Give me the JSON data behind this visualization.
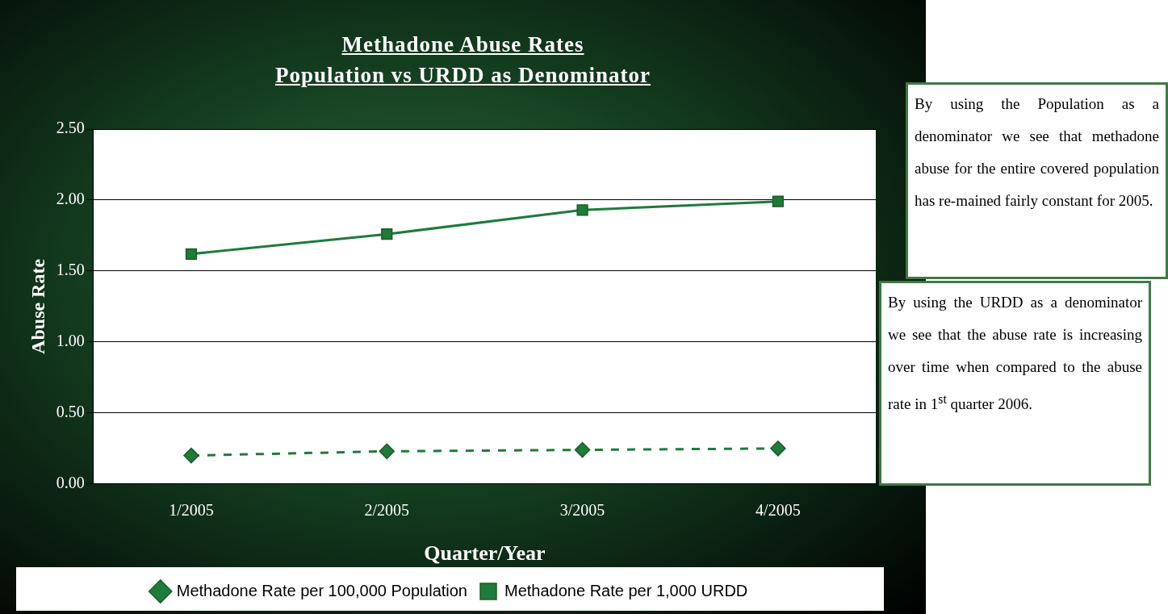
{
  "chart_data": {
    "type": "line",
    "title": "Methadone Abuse Rates ",
    "subtitle": "Population vs URDD as Denominator",
    "xlabel": "Quarter/Year",
    "ylabel": "Abuse Rate",
    "categories": [
      "1/2005",
      "2/2005",
      "3/2005",
      "4/2005"
    ],
    "series": [
      {
        "name": "Methadone Rate per 100,000 Population",
        "color": "#1e7b3a",
        "values": [
          0.2,
          0.23,
          0.24,
          0.25
        ],
        "marker": "diamond",
        "line_style": "dashed"
      },
      {
        "name": "Methadone Rate per 1,000 URDD",
        "color": "#1e7b3a",
        "values": [
          1.62,
          1.76,
          1.93,
          1.99
        ],
        "marker": "square",
        "line_style": "solid"
      }
    ],
    "ylim": [
      0,
      2.5
    ],
    "yticks": [
      {
        "value": 0,
        "label": "0.00"
      },
      {
        "value": 0.5,
        "label": "0.50"
      },
      {
        "value": 1,
        "label": "1.00"
      },
      {
        "value": 1.5,
        "label": "1.50"
      },
      {
        "value": 2,
        "label": "2.00"
      },
      {
        "value": 2.5,
        "label": "2.50"
      }
    ],
    "grid": "y",
    "legend": "bottom",
    "annotations": [
      "By using the Population as a denominator we see that methadone abuse for the entire covered population has re-mained fairly constant for 2005.",
      "By using the URDD as a denominator we see that the abuse rate is increasing over time when compared to the abuse rate in 1$^{st}$ quarter 2006."
    ]
  }
}
